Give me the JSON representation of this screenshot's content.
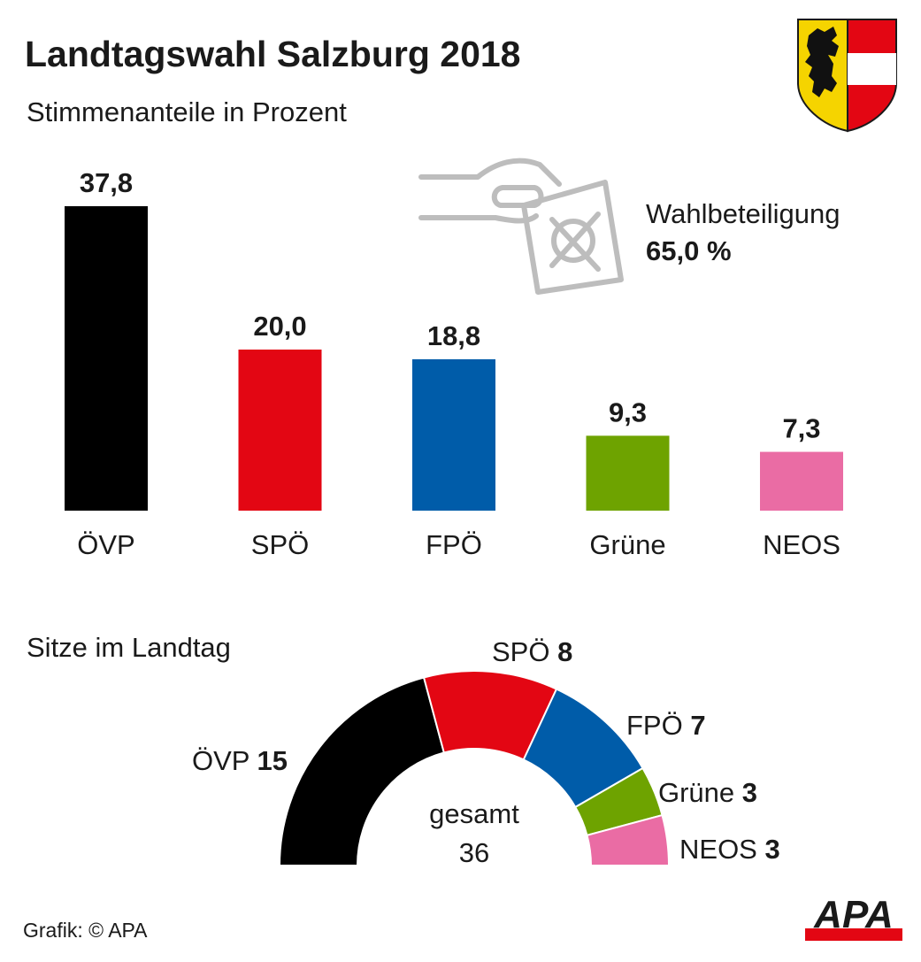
{
  "title": "Landtagswahl Salzburg 2018",
  "subtitle": "Stimmenanteile in Prozent",
  "turnout": {
    "label": "Wahlbeteiligung",
    "value": "65,0 %"
  },
  "seats_title": "Sitze im Landtag",
  "seats_total": {
    "label": "gesamt",
    "value": "36"
  },
  "source": "Grafik: © APA",
  "logo_text": "APA",
  "colors": {
    "ovp": "#000000",
    "spo": "#e30613",
    "fpo": "#005ca9",
    "grune": "#6ea300",
    "neos": "#ea6ca4",
    "text": "#1a1a1a",
    "coat_yellow": "#f5d400",
    "coat_red": "#e30613",
    "icon_gray": "#bdbdbd"
  },
  "chart_data": [
    {
      "type": "bar",
      "title": "Stimmenanteile in Prozent",
      "categories": [
        "ÖVP",
        "SPÖ",
        "FPÖ",
        "Grüne",
        "NEOS"
      ],
      "values": [
        37.8,
        20.0,
        18.8,
        9.3,
        7.3
      ],
      "value_labels": [
        "37,8",
        "20,0",
        "18,8",
        "9,3",
        "7,3"
      ],
      "series_colors": [
        "#000000",
        "#e30613",
        "#005ca9",
        "#6ea300",
        "#ea6ca4"
      ],
      "xlabel": "",
      "ylabel": "",
      "ylim": [
        0,
        37.8
      ],
      "grid": false
    },
    {
      "type": "pie",
      "subtype": "semicircle",
      "title": "Sitze im Landtag",
      "categories": [
        "ÖVP",
        "SPÖ",
        "FPÖ",
        "Grüne",
        "NEOS"
      ],
      "values": [
        15,
        8,
        7,
        3,
        3
      ],
      "total": 36,
      "series_colors": [
        "#000000",
        "#e30613",
        "#005ca9",
        "#6ea300",
        "#ea6ca4"
      ]
    }
  ]
}
